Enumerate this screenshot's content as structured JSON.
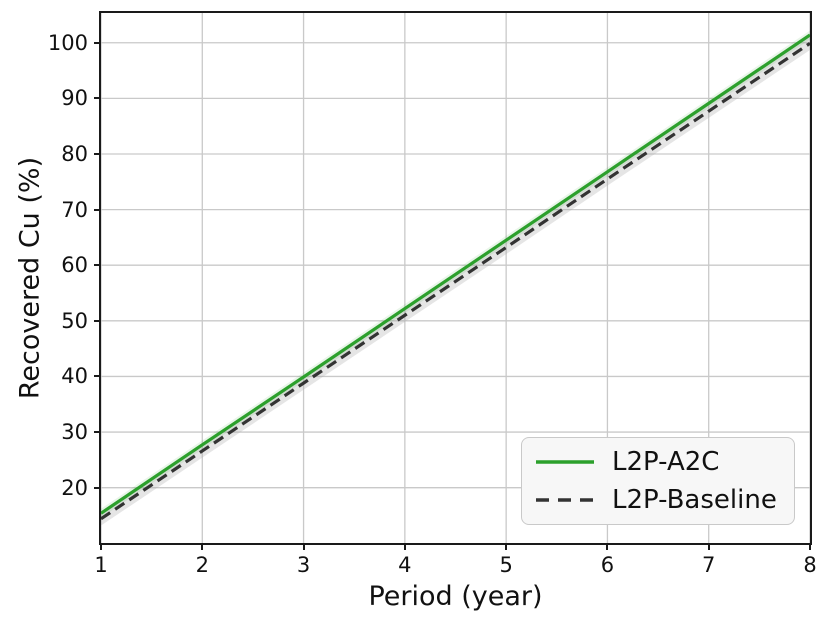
{
  "chart_data": {
    "type": "line",
    "title": "",
    "xlabel": "Period (year)",
    "ylabel": "Recovered Cu (%)",
    "x": [
      1,
      2,
      3,
      4,
      5,
      6,
      7,
      8
    ],
    "series": [
      {
        "name": "L2P-A2C",
        "color": "#2ca02c",
        "style": "solid",
        "values": [
          15.4,
          27.7,
          39.9,
          52.2,
          64.5,
          76.8,
          89.1,
          101.4
        ],
        "band": 0.8,
        "band_color": "#2ca02c",
        "band_opacity": 0.1
      },
      {
        "name": "L2P-Baseline",
        "color": "#333333",
        "style": "dashed",
        "values": [
          14.4,
          26.6,
          38.8,
          51.0,
          63.2,
          75.5,
          87.7,
          99.9
        ],
        "band": 1.2,
        "band_color": "#aaaaaa",
        "band_opacity": 0.3
      }
    ],
    "xlim": [
      1,
      8
    ],
    "ylim": [
      10.05,
      105.35
    ],
    "xticks": [
      1,
      2,
      3,
      4,
      5,
      6,
      7,
      8
    ],
    "yticks": [
      20,
      30,
      40,
      50,
      60,
      70,
      80,
      90,
      100
    ],
    "grid": true,
    "legend_position": "lower right"
  },
  "styles": {
    "grid_color": "#c9c9c9",
    "spine_color": "#1a1a1a",
    "text_color": "#111111",
    "legend_bg": "#f7f7f7",
    "legend_border": "#c9c9c9",
    "accent_green": "#2ca02c",
    "accent_dark": "#333333"
  }
}
